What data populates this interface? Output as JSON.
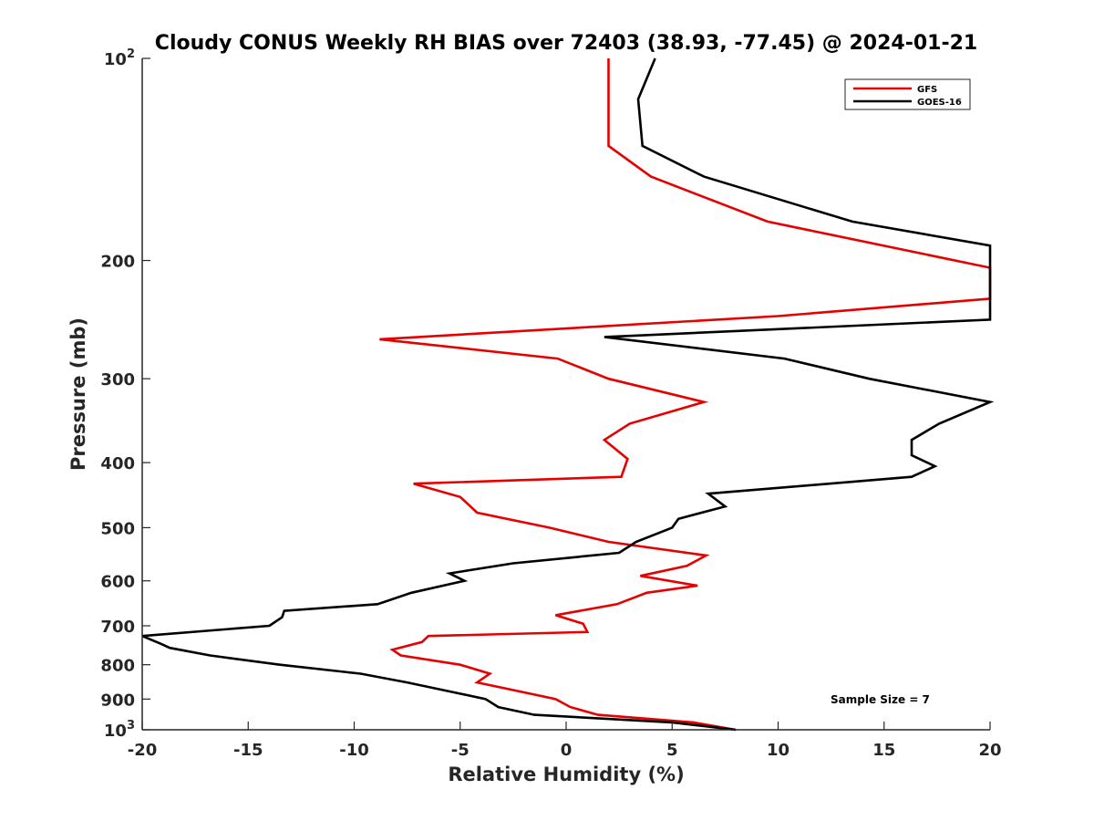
{
  "chart_data": {
    "type": "line",
    "title": "Cloudy CONUS Weekly RH BIAS over 72403 (38.93, -77.45) @ 2024-01-21",
    "xlabel": "Relative Humidity (%)",
    "ylabel": "Pressure (mb)",
    "xlim": [
      -20,
      20
    ],
    "ylim": [
      100,
      1000
    ],
    "yscale": "log",
    "y_reversed": true,
    "grid": false,
    "legend_location": "top-right",
    "x_ticks": [
      "-20",
      "-15",
      "-10",
      "-5",
      "0",
      "5",
      "10",
      "15",
      "20"
    ],
    "y_ticks": [
      {
        "value": 100,
        "label": "10",
        "sup": "2"
      },
      {
        "value": 200,
        "label": "200",
        "sup": ""
      },
      {
        "value": 300,
        "label": "300",
        "sup": ""
      },
      {
        "value": 400,
        "label": "400",
        "sup": ""
      },
      {
        "value": 500,
        "label": "500",
        "sup": ""
      },
      {
        "value": 600,
        "label": "600",
        "sup": ""
      },
      {
        "value": 700,
        "label": "700",
        "sup": ""
      },
      {
        "value": 800,
        "label": "800",
        "sup": ""
      },
      {
        "value": 900,
        "label": "900",
        "sup": ""
      },
      {
        "value": 1000,
        "label": "10",
        "sup": "3"
      }
    ],
    "annotation": "Sample Size = 7",
    "series": [
      {
        "name": "GFS",
        "color": "#e60000",
        "points": [
          [
            8.0,
            1000
          ],
          [
            6.0,
            975
          ],
          [
            1.5,
            950
          ],
          [
            0.2,
            925
          ],
          [
            -0.5,
            900
          ],
          [
            -4.2,
            850
          ],
          [
            -3.6,
            825
          ],
          [
            -5.0,
            800
          ],
          [
            -7.8,
            775
          ],
          [
            -8.2,
            760
          ],
          [
            -6.8,
            740
          ],
          [
            -6.5,
            725
          ],
          [
            1.0,
            715
          ],
          [
            0.8,
            695
          ],
          [
            -0.5,
            675
          ],
          [
            2.4,
            650
          ],
          [
            3.8,
            625
          ],
          [
            6.2,
            610
          ],
          [
            3.5,
            590
          ],
          [
            5.7,
            570
          ],
          [
            6.6,
            550
          ],
          [
            2.0,
            525
          ],
          [
            -0.8,
            500
          ],
          [
            -4.2,
            475
          ],
          [
            -5.0,
            450
          ],
          [
            -7.2,
            430
          ],
          [
            2.6,
            420
          ],
          [
            2.9,
            395
          ],
          [
            1.8,
            370
          ],
          [
            3.0,
            350
          ],
          [
            6.5,
            325
          ],
          [
            2.0,
            300
          ],
          [
            -0.4,
            280
          ],
          [
            -8.8,
            262
          ],
          [
            10.0,
            242
          ],
          [
            20.0,
            228
          ],
          [
            20.0,
            205
          ],
          [
            9.5,
            175
          ],
          [
            4.0,
            150
          ],
          [
            2.0,
            135
          ],
          [
            2.0,
            100
          ]
        ]
      },
      {
        "name": "GOES-16",
        "color": "#000000",
        "points": [
          [
            8.0,
            1000
          ],
          [
            5.0,
            975
          ],
          [
            -1.5,
            950
          ],
          [
            -3.2,
            925
          ],
          [
            -3.8,
            900
          ],
          [
            -7.5,
            850
          ],
          [
            -9.7,
            825
          ],
          [
            -13.5,
            800
          ],
          [
            -16.8,
            775
          ],
          [
            -18.7,
            755
          ],
          [
            -19.1,
            745
          ],
          [
            -20.0,
            725
          ],
          [
            -14.0,
            700
          ],
          [
            -13.4,
            680
          ],
          [
            -13.3,
            665
          ],
          [
            -8.9,
            650
          ],
          [
            -7.3,
            625
          ],
          [
            -4.8,
            600
          ],
          [
            -5.5,
            585
          ],
          [
            -2.5,
            565
          ],
          [
            2.5,
            545
          ],
          [
            3.3,
            525
          ],
          [
            5.0,
            500
          ],
          [
            5.3,
            485
          ],
          [
            7.5,
            465
          ],
          [
            6.7,
            445
          ],
          [
            16.3,
            420
          ],
          [
            17.4,
            405
          ],
          [
            16.3,
            390
          ],
          [
            16.3,
            370
          ],
          [
            17.6,
            350
          ],
          [
            20.0,
            325
          ],
          [
            14.3,
            300
          ],
          [
            10.3,
            280
          ],
          [
            1.8,
            260
          ],
          [
            20.0,
            245
          ],
          [
            20.0,
            190
          ],
          [
            13.5,
            175
          ],
          [
            6.5,
            150
          ],
          [
            3.6,
            135
          ],
          [
            3.4,
            115
          ],
          [
            4.2,
            100
          ]
        ]
      }
    ]
  }
}
